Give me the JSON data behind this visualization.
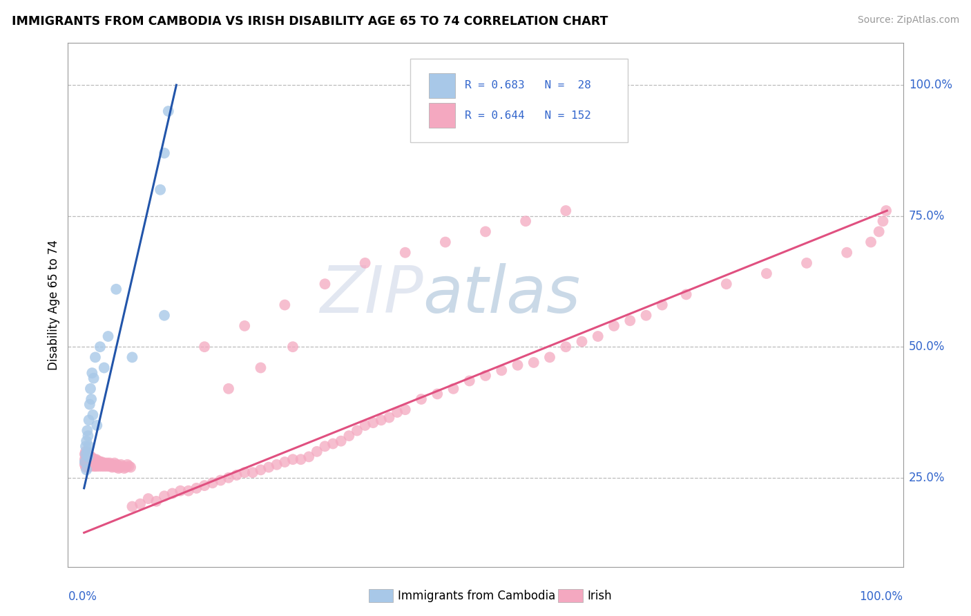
{
  "title": "IMMIGRANTS FROM CAMBODIA VS IRISH DISABILITY AGE 65 TO 74 CORRELATION CHART",
  "source_text": "Source: ZipAtlas.com",
  "ylabel": "Disability Age 65 to 74",
  "legend_label1": "Immigrants from Cambodia",
  "legend_label2": "Irish",
  "color_cambodia": "#A8C8E8",
  "color_irish": "#F4A8C0",
  "color_text_blue": "#3366CC",
  "color_line_blue": "#2255AA",
  "color_line_pink": "#E05080",
  "watermark": "ZIPatlas",
  "watermark_ZIP_color": "#c8cfe0",
  "watermark_atlas_color": "#a0b8d8",
  "cam_line_x0": 0.0,
  "cam_line_y0": 0.23,
  "cam_line_x1": 0.115,
  "cam_line_y1": 1.0,
  "iri_line_x0": 0.0,
  "iri_line_y0": 0.145,
  "iri_line_x1": 1.0,
  "iri_line_y1": 0.76,
  "cambodia_x": [
    0.001,
    0.002,
    0.002,
    0.003,
    0.003,
    0.004,
    0.004,
    0.005,
    0.005,
    0.006,
    0.006,
    0.007,
    0.008,
    0.009,
    0.01,
    0.011,
    0.012,
    0.014,
    0.016,
    0.02,
    0.025,
    0.03,
    0.04,
    0.06,
    0.095,
    0.1,
    0.1,
    0.105
  ],
  "cambodia_y": [
    0.28,
    0.295,
    0.31,
    0.265,
    0.32,
    0.3,
    0.34,
    0.29,
    0.33,
    0.36,
    0.31,
    0.39,
    0.42,
    0.4,
    0.45,
    0.37,
    0.44,
    0.48,
    0.35,
    0.5,
    0.46,
    0.52,
    0.61,
    0.48,
    0.8,
    0.87,
    0.56,
    0.95
  ],
  "irish_cluster_x": [
    0.001,
    0.001,
    0.001,
    0.002,
    0.002,
    0.002,
    0.002,
    0.003,
    0.003,
    0.003,
    0.003,
    0.004,
    0.004,
    0.004,
    0.005,
    0.005,
    0.005,
    0.006,
    0.006,
    0.006,
    0.007,
    0.007,
    0.007,
    0.008,
    0.008,
    0.008,
    0.009,
    0.009,
    0.01,
    0.01,
    0.01,
    0.011,
    0.011,
    0.012,
    0.012,
    0.013,
    0.013,
    0.014,
    0.014,
    0.015,
    0.015,
    0.016,
    0.016,
    0.017,
    0.018,
    0.018,
    0.019,
    0.02,
    0.02,
    0.021,
    0.022,
    0.022,
    0.023,
    0.024,
    0.025,
    0.026,
    0.027,
    0.028,
    0.029,
    0.03,
    0.031,
    0.032,
    0.033,
    0.034,
    0.035,
    0.036,
    0.037,
    0.038,
    0.04,
    0.041,
    0.042,
    0.043,
    0.045,
    0.046,
    0.048,
    0.05,
    0.052,
    0.054,
    0.056,
    0.058
  ],
  "irish_cluster_y": [
    0.295,
    0.275,
    0.285,
    0.28,
    0.29,
    0.3,
    0.27,
    0.285,
    0.295,
    0.275,
    0.28,
    0.29,
    0.275,
    0.285,
    0.28,
    0.295,
    0.27,
    0.285,
    0.29,
    0.278,
    0.275,
    0.282,
    0.292,
    0.278,
    0.285,
    0.272,
    0.28,
    0.29,
    0.275,
    0.285,
    0.28,
    0.278,
    0.285,
    0.272,
    0.282,
    0.278,
    0.285,
    0.28,
    0.272,
    0.278,
    0.285,
    0.272,
    0.28,
    0.275,
    0.282,
    0.278,
    0.272,
    0.28,
    0.275,
    0.278,
    0.272,
    0.28,
    0.278,
    0.275,
    0.272,
    0.278,
    0.275,
    0.272,
    0.278,
    0.275,
    0.272,
    0.278,
    0.275,
    0.272,
    0.27,
    0.275,
    0.272,
    0.278,
    0.27,
    0.275,
    0.272,
    0.268,
    0.27,
    0.275,
    0.272,
    0.268,
    0.27,
    0.275,
    0.272,
    0.27
  ],
  "irish_spread_x": [
    0.06,
    0.07,
    0.08,
    0.09,
    0.1,
    0.11,
    0.12,
    0.13,
    0.14,
    0.15,
    0.16,
    0.17,
    0.18,
    0.19,
    0.2,
    0.21,
    0.22,
    0.23,
    0.24,
    0.25,
    0.26,
    0.27,
    0.28,
    0.29,
    0.3,
    0.31,
    0.32,
    0.33,
    0.34,
    0.35,
    0.36,
    0.37,
    0.38,
    0.39,
    0.4,
    0.42,
    0.44,
    0.46,
    0.48,
    0.5,
    0.52,
    0.54,
    0.56,
    0.58,
    0.6,
    0.62,
    0.64,
    0.66,
    0.68,
    0.7,
    0.72,
    0.75,
    0.8,
    0.85,
    0.9,
    0.95,
    0.98,
    0.99,
    0.995,
    0.999,
    0.15,
    0.2,
    0.25,
    0.3,
    0.35,
    0.4,
    0.45,
    0.5,
    0.55,
    0.6,
    0.18,
    0.22,
    0.26
  ],
  "irish_spread_y": [
    0.195,
    0.2,
    0.21,
    0.205,
    0.215,
    0.22,
    0.225,
    0.225,
    0.23,
    0.235,
    0.24,
    0.245,
    0.25,
    0.255,
    0.26,
    0.26,
    0.265,
    0.27,
    0.275,
    0.28,
    0.285,
    0.285,
    0.29,
    0.3,
    0.31,
    0.315,
    0.32,
    0.33,
    0.34,
    0.35,
    0.355,
    0.36,
    0.365,
    0.375,
    0.38,
    0.4,
    0.41,
    0.42,
    0.435,
    0.445,
    0.455,
    0.465,
    0.47,
    0.48,
    0.5,
    0.51,
    0.52,
    0.54,
    0.55,
    0.56,
    0.58,
    0.6,
    0.62,
    0.64,
    0.66,
    0.68,
    0.7,
    0.72,
    0.74,
    0.76,
    0.5,
    0.54,
    0.58,
    0.62,
    0.66,
    0.68,
    0.7,
    0.72,
    0.74,
    0.76,
    0.42,
    0.46,
    0.5
  ],
  "xlim": [
    0.0,
    1.0
  ],
  "ylim": [
    0.1,
    1.05
  ]
}
